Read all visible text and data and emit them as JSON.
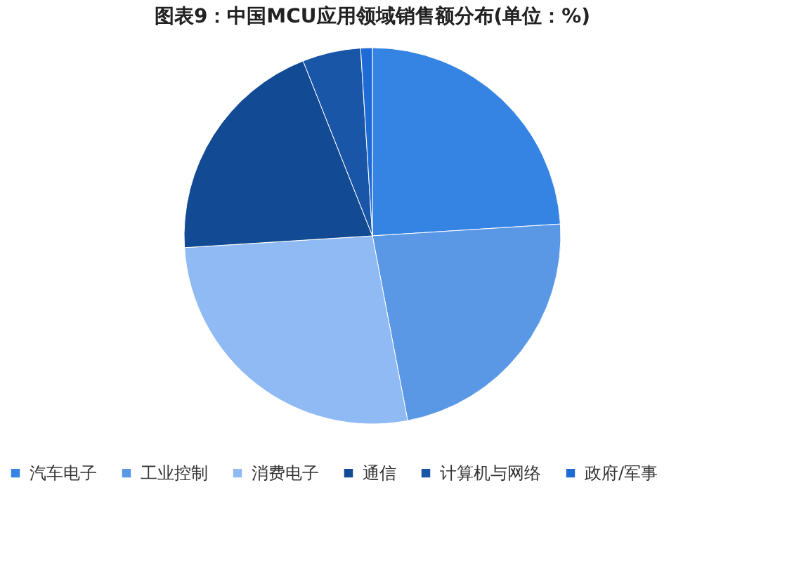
{
  "chart_data": {
    "type": "pie",
    "title": "图表9：中国MCU应用领域销售额分布(单位：%)",
    "categories": [
      "汽车电子",
      "工业控制",
      "消费电子",
      "通信",
      "计算机与网络",
      "政府/军事"
    ],
    "values": [
      24,
      23,
      27,
      20,
      5,
      1
    ],
    "colors": [
      "#3584e4",
      "#5a98e6",
      "#90baf3",
      "#124a94",
      "#1a56a8",
      "#1f6bd6"
    ],
    "legend": "bottom"
  }
}
